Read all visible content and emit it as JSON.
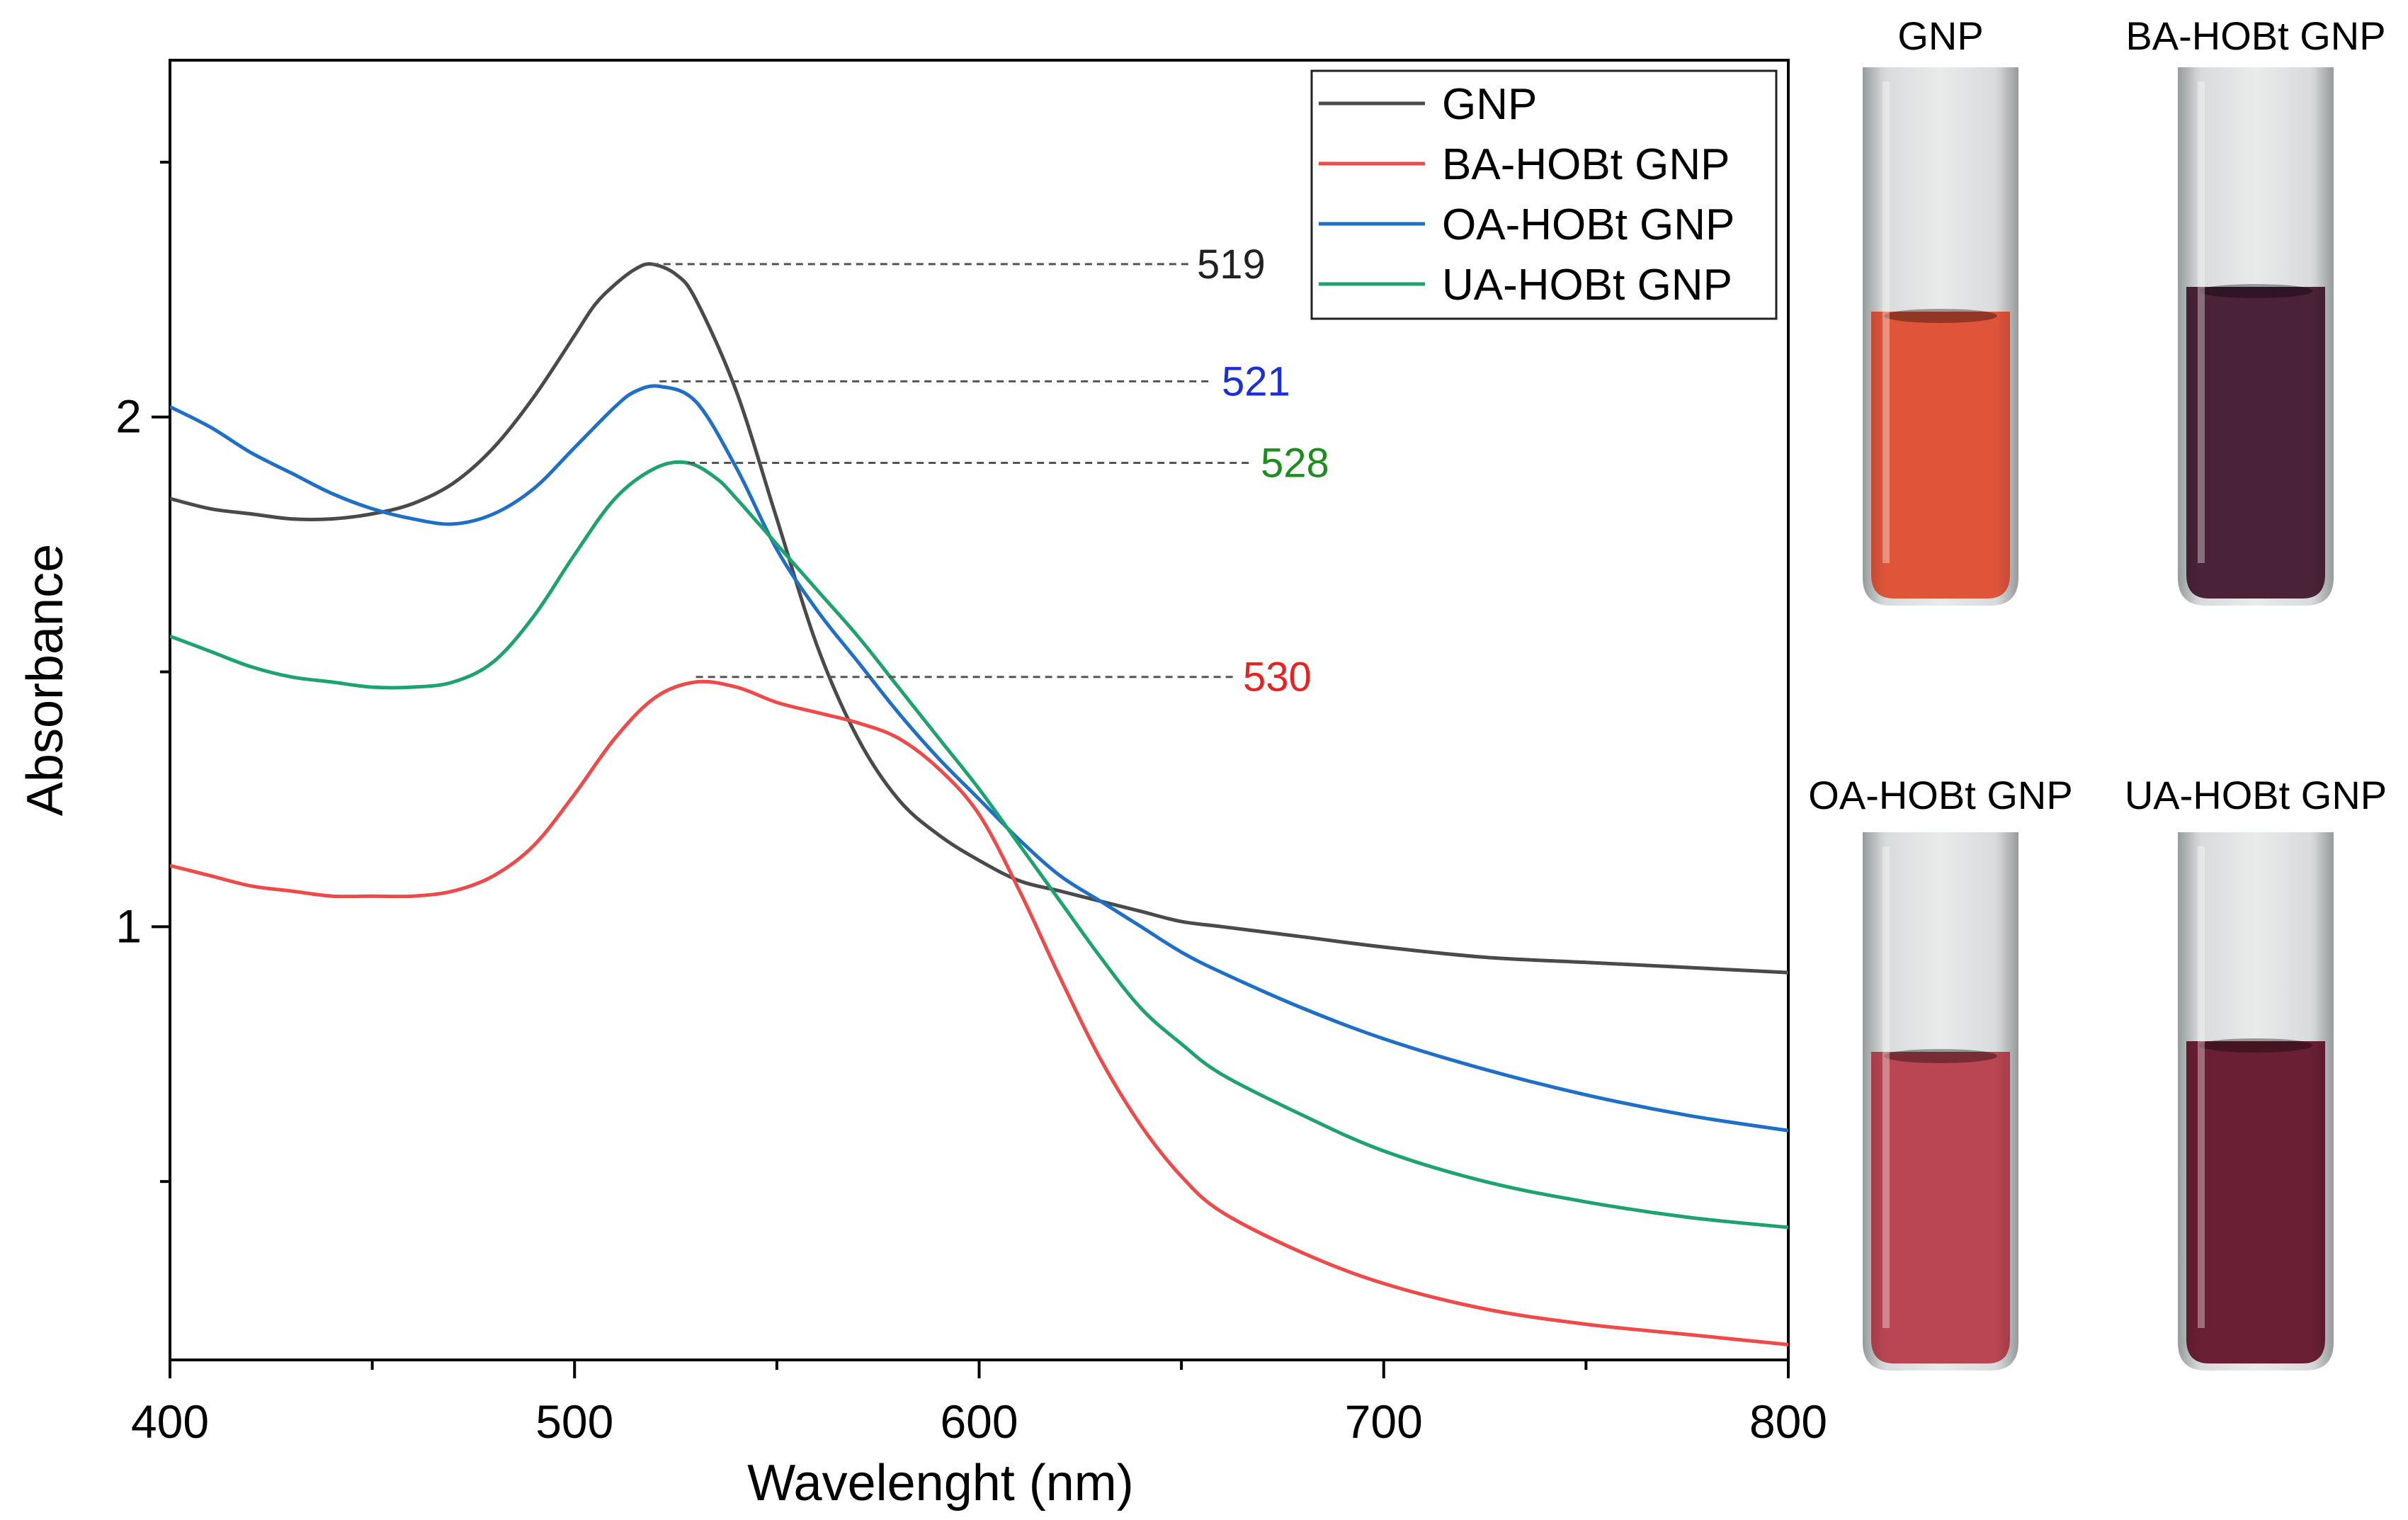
{
  "chart_data": {
    "type": "line",
    "title": "",
    "xlabel": "Wavelenght (nm)",
    "ylabel": "Absorbance",
    "xlim": [
      400,
      800
    ],
    "ylim": [
      0.15,
      2.7
    ],
    "x_ticks": [
      "400",
      "500",
      "600",
      "700",
      "800"
    ],
    "y_ticks": [
      "1",
      "2"
    ],
    "grid": false,
    "legend_position": "top-right",
    "series": [
      {
        "name": "GNP",
        "color": "#4a4a4a",
        "x": [
          400,
          410,
          420,
          430,
          440,
          450,
          460,
          470,
          480,
          490,
          500,
          505,
          510,
          515,
          519,
          525,
          530,
          540,
          550,
          560,
          570,
          580,
          590,
          600,
          610,
          620,
          630,
          640,
          650,
          660,
          680,
          700,
          725,
          750,
          775,
          800
        ],
        "y": [
          1.84,
          1.82,
          1.81,
          1.8,
          1.8,
          1.81,
          1.83,
          1.87,
          1.94,
          2.04,
          2.16,
          2.22,
          2.26,
          2.29,
          2.3,
          2.28,
          2.23,
          2.05,
          1.8,
          1.55,
          1.37,
          1.25,
          1.18,
          1.13,
          1.09,
          1.07,
          1.05,
          1.03,
          1.01,
          1.0,
          0.98,
          0.96,
          0.94,
          0.93,
          0.92,
          0.91
        ]
      },
      {
        "name": "BA-HOBt GNP",
        "color": "#ee4a4a",
        "x": [
          400,
          410,
          420,
          430,
          440,
          450,
          460,
          470,
          480,
          490,
          500,
          510,
          520,
          530,
          540,
          550,
          560,
          570,
          580,
          590,
          600,
          610,
          620,
          630,
          640,
          650,
          660,
          680,
          700,
          725,
          750,
          775,
          800
        ],
        "y": [
          1.12,
          1.1,
          1.08,
          1.07,
          1.06,
          1.06,
          1.06,
          1.07,
          1.1,
          1.16,
          1.26,
          1.37,
          1.45,
          1.48,
          1.47,
          1.44,
          1.42,
          1.4,
          1.37,
          1.31,
          1.22,
          1.07,
          0.9,
          0.74,
          0.61,
          0.51,
          0.44,
          0.36,
          0.3,
          0.25,
          0.22,
          0.2,
          0.18
        ]
      },
      {
        "name": "OA-HOBt GNP",
        "color": "#1f6fc6",
        "x": [
          400,
          410,
          420,
          430,
          440,
          450,
          460,
          470,
          480,
          490,
          500,
          510,
          515,
          521,
          530,
          540,
          550,
          560,
          570,
          580,
          590,
          600,
          610,
          620,
          630,
          640,
          650,
          660,
          680,
          700,
          725,
          750,
          775,
          800
        ],
        "y": [
          2.02,
          1.98,
          1.93,
          1.89,
          1.85,
          1.82,
          1.8,
          1.79,
          1.81,
          1.86,
          1.94,
          2.02,
          2.05,
          2.06,
          2.03,
          1.9,
          1.74,
          1.62,
          1.52,
          1.42,
          1.33,
          1.25,
          1.17,
          1.1,
          1.05,
          1.0,
          0.95,
          0.91,
          0.84,
          0.78,
          0.72,
          0.67,
          0.63,
          0.6
        ]
      },
      {
        "name": "UA-HOBt GNP",
        "color": "#1fa36e",
        "x": [
          400,
          410,
          420,
          430,
          440,
          450,
          460,
          470,
          480,
          490,
          500,
          510,
          520,
          528,
          535,
          540,
          550,
          560,
          570,
          580,
          590,
          600,
          610,
          620,
          630,
          640,
          650,
          660,
          680,
          700,
          725,
          750,
          775,
          800
        ],
        "y": [
          1.57,
          1.54,
          1.51,
          1.49,
          1.48,
          1.47,
          1.47,
          1.48,
          1.52,
          1.61,
          1.73,
          1.84,
          1.9,
          1.91,
          1.88,
          1.84,
          1.75,
          1.66,
          1.57,
          1.47,
          1.37,
          1.27,
          1.16,
          1.05,
          0.94,
          0.84,
          0.77,
          0.71,
          0.63,
          0.56,
          0.5,
          0.46,
          0.43,
          0.41
        ]
      }
    ],
    "annotations": [
      {
        "text": "519",
        "x": 519,
        "y": 2.3,
        "color": "#222222"
      },
      {
        "text": "521",
        "x": 521,
        "y": 2.07,
        "color": "#1c2fd6"
      },
      {
        "text": "528",
        "x": 528,
        "y": 1.91,
        "color": "#1e8c1e"
      },
      {
        "text": "530",
        "x": 530,
        "y": 1.49,
        "color": "#e62222"
      }
    ]
  },
  "photos": [
    {
      "label": "GNP",
      "liquid_color": "#e0553a"
    },
    {
      "label": "BA-HOBt GNP",
      "liquid_color": "#4a2338"
    },
    {
      "label": "OA-HOBt GNP",
      "liquid_color": "#b94652"
    },
    {
      "label": "UA-HOBt GNP",
      "liquid_color": "#6a1f34"
    }
  ]
}
